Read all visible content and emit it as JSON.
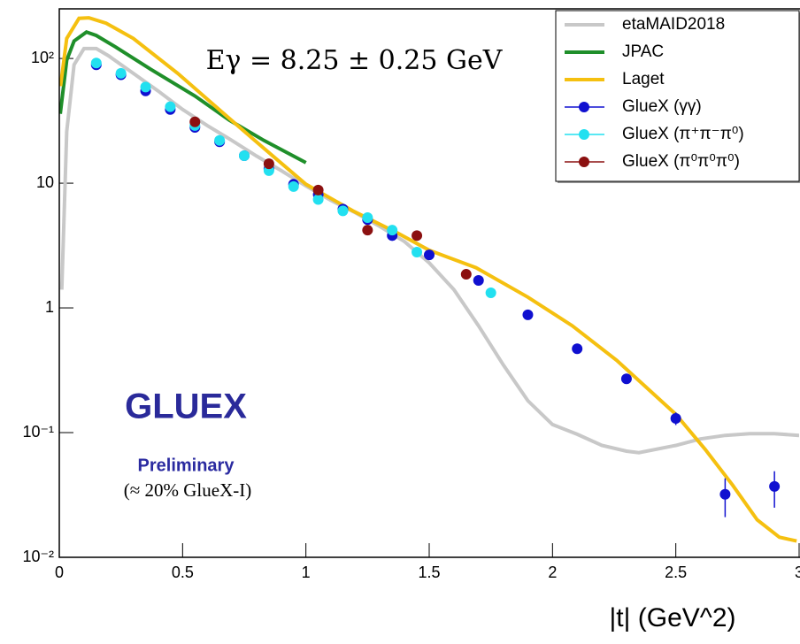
{
  "chart_data": {
    "type": "line",
    "annotations": [
      "Eγ = 8.25 ± 0.25 GeV",
      "GLUEX",
      "Preliminary",
      "(≈ 20% GlueX-I)"
    ],
    "xlabel": "|t| (GeV^2)",
    "xlim": [
      0,
      3
    ],
    "xticks": [
      0,
      0.5,
      1,
      1.5,
      2,
      2.5,
      3
    ],
    "ylim": [
      0.01,
      250
    ],
    "yscale": "log",
    "yticks": [
      {
        "value": 0.01,
        "label": "10⁻²"
      },
      {
        "value": 0.1,
        "label": "10⁻¹"
      },
      1,
      10,
      {
        "value": 100,
        "label": "10²"
      }
    ],
    "legend": "top-right",
    "series": [
      {
        "name": "etaMAID2018",
        "color": "#c8c8c8",
        "mode": "line",
        "x": [
          0.01,
          0.03,
          0.06,
          0.1,
          0.15,
          0.2,
          0.3,
          0.4,
          0.5,
          0.6,
          0.7,
          0.8,
          0.9,
          1.0,
          1.1,
          1.2,
          1.3,
          1.4,
          1.5,
          1.6,
          1.7,
          1.8,
          1.9,
          2.0,
          2.1,
          2.2,
          2.3,
          2.35,
          2.5,
          2.6,
          2.7,
          2.8,
          2.9,
          3.0
        ],
        "values": [
          1.4,
          26,
          89,
          120,
          120,
          105,
          76,
          55,
          39,
          29,
          22,
          16.5,
          12.6,
          9.5,
          7.3,
          5.8,
          4.5,
          3.4,
          2.3,
          1.4,
          0.72,
          0.35,
          0.18,
          0.116,
          0.097,
          0.079,
          0.071,
          0.069,
          0.079,
          0.089,
          0.095,
          0.098,
          0.098,
          0.095
        ]
      },
      {
        "name": "JPAC",
        "color": "#1f8f2a",
        "mode": "line",
        "x": [
          0.004,
          0.03,
          0.06,
          0.11,
          0.15,
          0.23,
          0.37,
          0.55,
          0.69,
          0.83,
          1.0
        ],
        "values": [
          36,
          97,
          138,
          163,
          153,
          123,
          82,
          50,
          32,
          22,
          14.6
        ]
      },
      {
        "name": "Laget",
        "color": "#f5c010",
        "mode": "line",
        "x": [
          0.005,
          0.03,
          0.08,
          0.12,
          0.19,
          0.3,
          0.48,
          0.69,
          0.83,
          1.0,
          1.19,
          1.37,
          1.5,
          1.69,
          1.9,
          2.08,
          2.26,
          2.5,
          2.62,
          2.73,
          2.83,
          2.92,
          2.99
        ],
        "values": [
          60,
          145,
          210,
          212,
          192,
          145,
          76,
          33,
          19,
          9.8,
          6,
          4,
          2.9,
          2.1,
          1.22,
          0.72,
          0.38,
          0.14,
          0.073,
          0.038,
          0.02,
          0.0145,
          0.0135
        ]
      },
      {
        "name": "GlueX (γγ)",
        "color": "#1010d0",
        "mode": "markers",
        "x": [
          0.15,
          0.25,
          0.35,
          0.45,
          0.55,
          0.65,
          0.75,
          0.85,
          0.95,
          1.05,
          1.15,
          1.25,
          1.35,
          1.5,
          1.7,
          1.9,
          2.1,
          2.3,
          2.5,
          2.7,
          2.9
        ],
        "values": [
          89,
          74,
          55,
          39,
          28,
          21.5,
          16.6,
          13,
          9.8,
          8.1,
          6.2,
          5.1,
          3.8,
          2.66,
          1.66,
          0.88,
          0.47,
          0.27,
          0.13,
          0.032,
          0.037
        ],
        "errors": [
          null,
          null,
          null,
          null,
          null,
          null,
          null,
          null,
          null,
          null,
          null,
          null,
          null,
          null,
          null,
          null,
          null,
          null,
          0.015,
          0.011,
          0.012
        ]
      },
      {
        "name": "GlueX (π⁺π⁻π⁰)",
        "color": "#22e0f0",
        "mode": "markers",
        "x": [
          0.15,
          0.25,
          0.35,
          0.45,
          0.55,
          0.65,
          0.75,
          0.85,
          0.95,
          1.05,
          1.15,
          1.25,
          1.35,
          1.45,
          1.75
        ],
        "values": [
          92,
          76,
          59,
          41,
          29,
          22,
          16.6,
          12.6,
          9.4,
          7.4,
          6,
          5.3,
          4.2,
          2.8,
          1.32
        ]
      },
      {
        "name": "GlueX (π⁰π⁰π⁰)",
        "color": "#8b1010",
        "mode": "markers",
        "x": [
          0.55,
          0.85,
          1.05,
          1.25,
          1.45,
          1.65
        ],
        "values": [
          31,
          14.3,
          8.8,
          4.2,
          3.8,
          1.86
        ]
      }
    ]
  }
}
